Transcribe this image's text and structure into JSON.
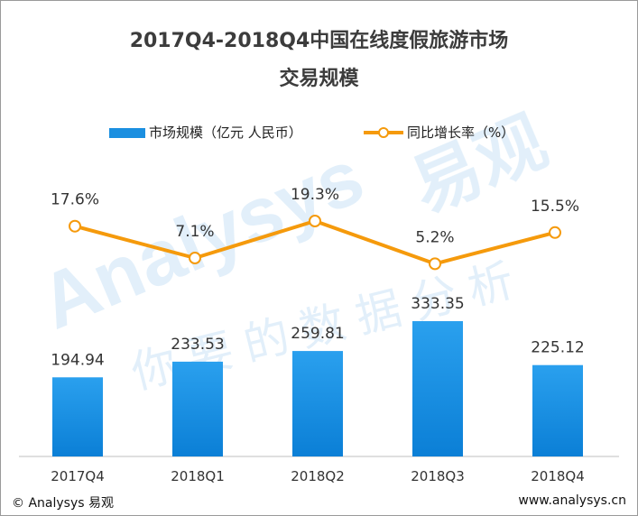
{
  "chart_data": {
    "type": "bar",
    "title_line1": "2017Q4-2018Q4中国在线度假旅游市场",
    "title_line2": "交易规模",
    "categories": [
      "2017Q4",
      "2018Q1",
      "2018Q2",
      "2018Q3",
      "2018Q4"
    ],
    "series": [
      {
        "name": "市场规模（亿元 人民币）",
        "type": "bar",
        "values": [
          194.94,
          233.53,
          259.81,
          333.35,
          225.12
        ],
        "labels": [
          "194.94",
          "233.53",
          "259.81",
          "333.35",
          "225.12"
        ],
        "color": "#1b8fe0"
      },
      {
        "name": "同比增长率（%）",
        "type": "line",
        "values": [
          17.6,
          7.1,
          19.3,
          5.2,
          15.5
        ],
        "labels": [
          "17.6%",
          "7.1%",
          "19.3%",
          "5.2%",
          "15.5%"
        ],
        "color": "#f59a0c"
      }
    ],
    "grid": false,
    "legend_position": "top"
  },
  "watermark": {
    "brand": "Analysys",
    "cn_name": "易观",
    "slogan": "你要的数据分析"
  },
  "footer": {
    "left": "© Analysys 易观",
    "right": "www.analysys.cn"
  }
}
